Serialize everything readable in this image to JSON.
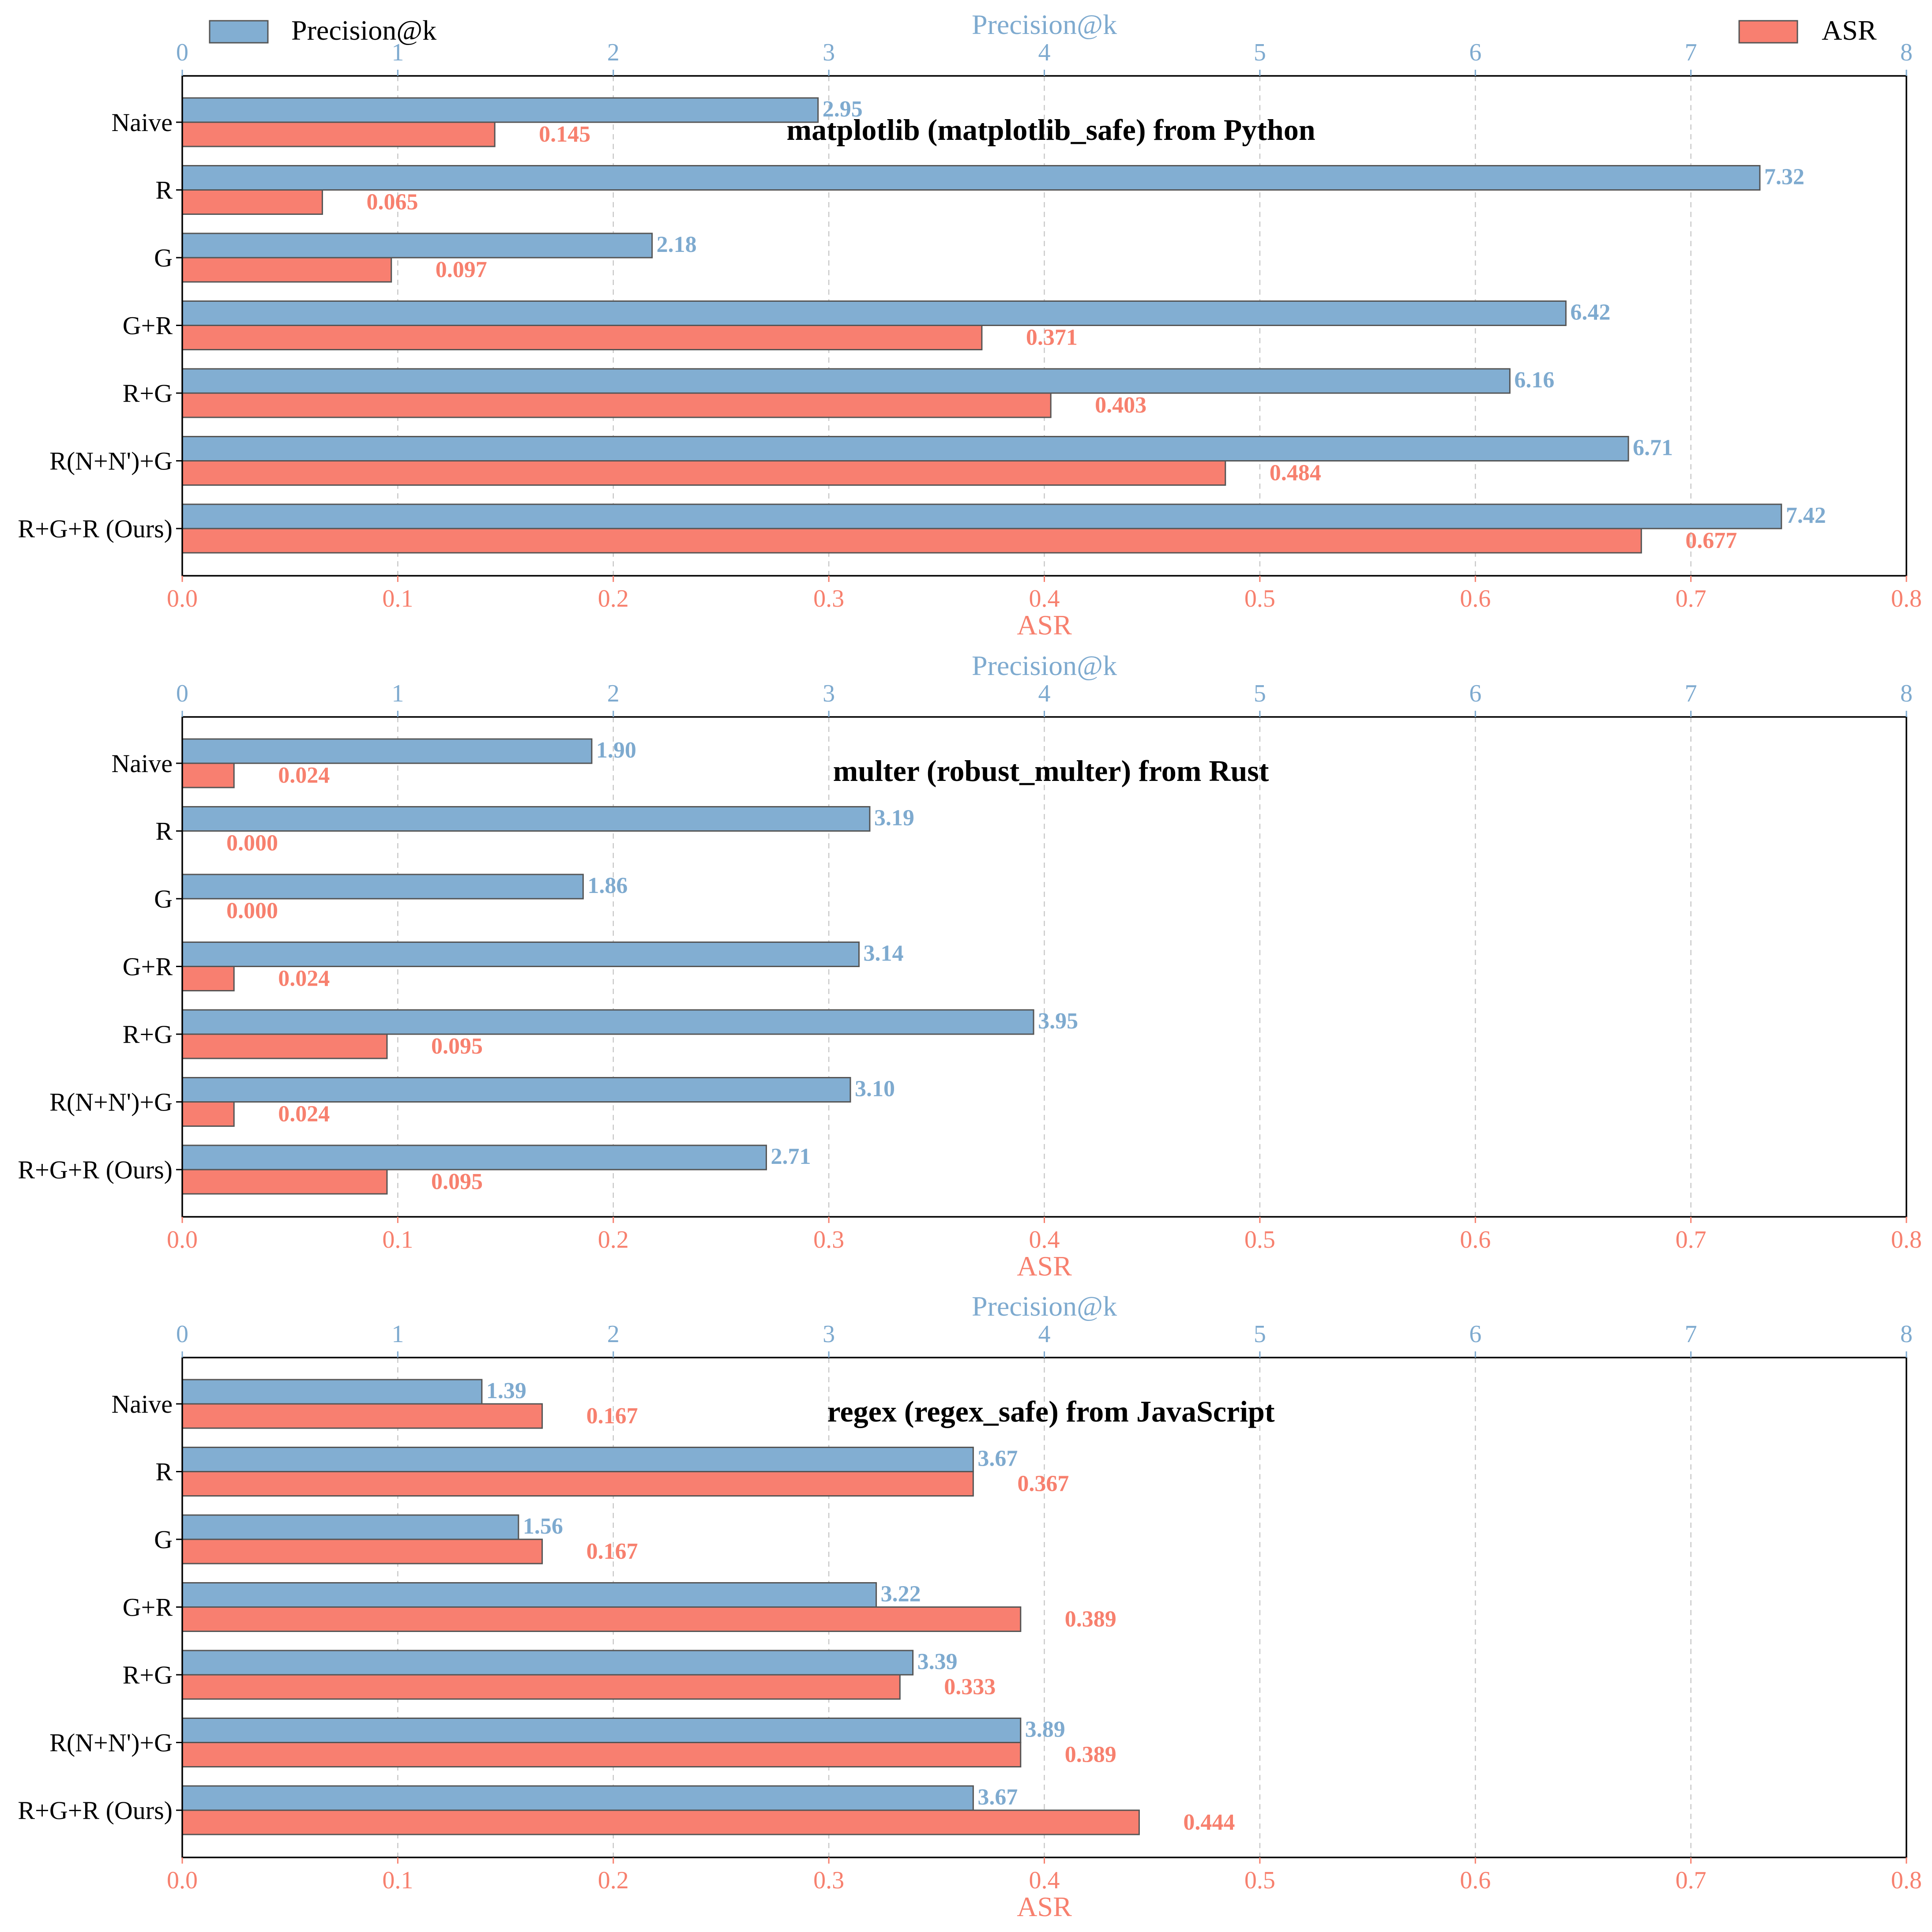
{
  "legend": {
    "left_label": "Precision@k",
    "right_label": "ASR",
    "left_color": "#82aed2",
    "right_color": "#f87f70"
  },
  "colors": {
    "precision": "#82aed2",
    "asr": "#f87f70",
    "precision_text": "#7eaacf",
    "asr_text": "#f7806e",
    "bar_edge": "#555555",
    "grid": "#c8c8c8"
  },
  "chart_data": [
    {
      "type": "bar",
      "orientation": "horizontal",
      "title": "matplotlib (matplotlib_safe) from Python",
      "top_axis_label": "Precision@k",
      "bottom_axis_label": "ASR",
      "precision_range": [
        0,
        8
      ],
      "asr_range": [
        0.0,
        0.8
      ],
      "precision_ticks": [
        "0",
        "1",
        "2",
        "3",
        "4",
        "5",
        "6",
        "7",
        "8"
      ],
      "asr_ticks": [
        "0.0",
        "0.1",
        "0.2",
        "0.3",
        "0.4",
        "0.5",
        "0.6",
        "0.7",
        "0.8"
      ],
      "grid": "vertical dashed",
      "categories": [
        "Naive",
        "R",
        "G",
        "G+R",
        "R+G",
        "R(N+N')+G",
        "R+G+R (Ours)"
      ],
      "series": [
        {
          "name": "Precision@k",
          "axis": "top",
          "values": [
            2.95,
            7.32,
            2.18,
            6.42,
            6.16,
            6.71,
            7.42
          ],
          "labels": [
            "2.95",
            "7.32",
            "2.18",
            "6.42",
            "6.16",
            "6.71",
            "7.42"
          ]
        },
        {
          "name": "ASR",
          "axis": "bottom",
          "values": [
            0.145,
            0.065,
            0.097,
            0.371,
            0.403,
            0.484,
            0.677
          ],
          "labels": [
            "0.145",
            "0.065",
            "0.097",
            "0.371",
            "0.403",
            "0.484",
            "0.677"
          ]
        }
      ]
    },
    {
      "type": "bar",
      "orientation": "horizontal",
      "title": "multer (robust_multer) from Rust",
      "top_axis_label": "Precision@k",
      "bottom_axis_label": "ASR",
      "precision_range": [
        0,
        8
      ],
      "asr_range": [
        0.0,
        0.8
      ],
      "precision_ticks": [
        "0",
        "1",
        "2",
        "3",
        "4",
        "5",
        "6",
        "7",
        "8"
      ],
      "asr_ticks": [
        "0.0",
        "0.1",
        "0.2",
        "0.3",
        "0.4",
        "0.5",
        "0.6",
        "0.7",
        "0.8"
      ],
      "grid": "vertical dashed",
      "categories": [
        "Naive",
        "R",
        "G",
        "G+R",
        "R+G",
        "R(N+N')+G",
        "R+G+R (Ours)"
      ],
      "series": [
        {
          "name": "Precision@k",
          "axis": "top",
          "values": [
            1.9,
            3.19,
            1.86,
            3.14,
            3.95,
            3.1,
            2.71
          ],
          "labels": [
            "1.90",
            "3.19",
            "1.86",
            "3.14",
            "3.95",
            "3.10",
            "2.71"
          ]
        },
        {
          "name": "ASR",
          "axis": "bottom",
          "values": [
            0.024,
            0.0,
            0.0,
            0.024,
            0.095,
            0.024,
            0.095
          ],
          "labels": [
            "0.024",
            "0.000",
            "0.000",
            "0.024",
            "0.095",
            "0.024",
            "0.095"
          ]
        }
      ]
    },
    {
      "type": "bar",
      "orientation": "horizontal",
      "title": "regex (regex_safe) from JavaScript",
      "top_axis_label": "Precision@k",
      "bottom_axis_label": "ASR",
      "precision_range": [
        0,
        8
      ],
      "asr_range": [
        0.0,
        0.8
      ],
      "precision_ticks": [
        "0",
        "1",
        "2",
        "3",
        "4",
        "5",
        "6",
        "7",
        "8"
      ],
      "asr_ticks": [
        "0.0",
        "0.1",
        "0.2",
        "0.3",
        "0.4",
        "0.5",
        "0.6",
        "0.7",
        "0.8"
      ],
      "grid": "vertical dashed",
      "categories": [
        "Naive",
        "R",
        "G",
        "G+R",
        "R+G",
        "R(N+N')+G",
        "R+G+R (Ours)"
      ],
      "series": [
        {
          "name": "Precision@k",
          "axis": "top",
          "values": [
            1.39,
            3.67,
            1.56,
            3.22,
            3.39,
            3.89,
            3.67
          ],
          "labels": [
            "1.39",
            "3.67",
            "1.56",
            "3.22",
            "3.39",
            "3.89",
            "3.67"
          ]
        },
        {
          "name": "ASR",
          "axis": "bottom",
          "values": [
            0.167,
            0.367,
            0.167,
            0.389,
            0.333,
            0.389,
            0.444
          ],
          "labels": [
            "0.167",
            "0.367",
            "0.167",
            "0.389",
            "0.333",
            "0.389",
            "0.444"
          ]
        }
      ]
    }
  ]
}
